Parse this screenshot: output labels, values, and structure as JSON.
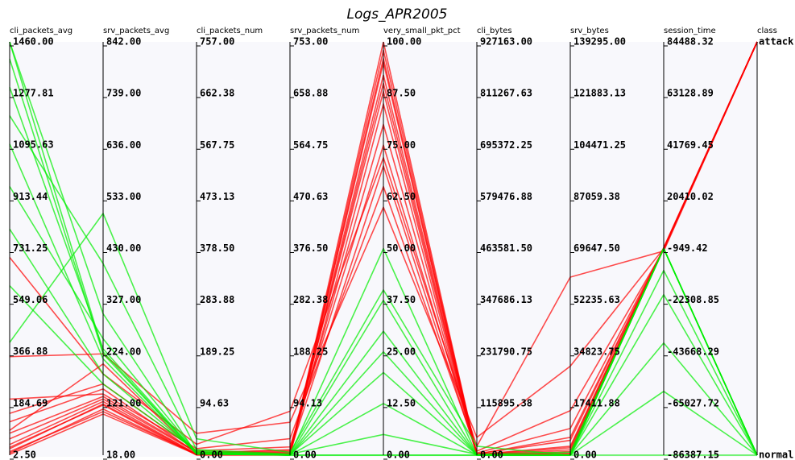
{
  "chart_data": {
    "type": "parallel",
    "title": "Logs_APR2005",
    "axes": [
      {
        "name": "cli_packets_avg",
        "lim": [
          2.5,
          1460
        ],
        "ticks": [
          {
            "value": 2.5,
            "label": "2.50"
          },
          {
            "value": 184.69,
            "label": "184.69"
          },
          {
            "value": 366.88,
            "label": "366.88"
          },
          {
            "value": 549.06,
            "label": "549.06"
          },
          {
            "value": 731.25,
            "label": "731.25"
          },
          {
            "value": 913.44,
            "label": "913.44"
          },
          {
            "value": 1095.63,
            "label": "1095.63"
          },
          {
            "value": 1277.81,
            "label": "1277.81"
          },
          {
            "value": 1460,
            "label": "1460.00"
          }
        ]
      },
      {
        "name": "srv_packets_avg",
        "lim": [
          18,
          842
        ],
        "ticks": [
          {
            "value": 18,
            "label": "18.00"
          },
          {
            "value": 121,
            "label": "121.00"
          },
          {
            "value": 224,
            "label": "224.00"
          },
          {
            "value": 327,
            "label": "327.00"
          },
          {
            "value": 430,
            "label": "430.00"
          },
          {
            "value": 533,
            "label": "533.00"
          },
          {
            "value": 636,
            "label": "636.00"
          },
          {
            "value": 739,
            "label": "739.00"
          },
          {
            "value": 842,
            "label": "842.00"
          }
        ]
      },
      {
        "name": "cli_packets_num",
        "lim": [
          0,
          757
        ],
        "ticks": [
          {
            "value": 0,
            "label": "0.00"
          },
          {
            "value": 94.63,
            "label": "94.63"
          },
          {
            "value": 189.25,
            "label": "189.25"
          },
          {
            "value": 283.88,
            "label": "283.88"
          },
          {
            "value": 378.5,
            "label": "378.50"
          },
          {
            "value": 473.13,
            "label": "473.13"
          },
          {
            "value": 567.75,
            "label": "567.75"
          },
          {
            "value": 662.38,
            "label": "662.38"
          },
          {
            "value": 757,
            "label": "757.00"
          }
        ]
      },
      {
        "name": "srv_packets_num",
        "lim": [
          0,
          753
        ],
        "ticks": [
          {
            "value": 0,
            "label": "0.00"
          },
          {
            "value": 94.13,
            "label": "94.13"
          },
          {
            "value": 188.25,
            "label": "188.25"
          },
          {
            "value": 282.38,
            "label": "282.38"
          },
          {
            "value": 376.5,
            "label": "376.50"
          },
          {
            "value": 470.63,
            "label": "470.63"
          },
          {
            "value": 564.75,
            "label": "564.75"
          },
          {
            "value": 658.88,
            "label": "658.88"
          },
          {
            "value": 753,
            "label": "753.00"
          }
        ]
      },
      {
        "name": "very_small_pkt_pct",
        "lim": [
          0,
          100
        ],
        "ticks": [
          {
            "value": 0,
            "label": "0.00"
          },
          {
            "value": 12.5,
            "label": "12.50"
          },
          {
            "value": 25,
            "label": "25.00"
          },
          {
            "value": 37.5,
            "label": "37.50"
          },
          {
            "value": 50,
            "label": "50.00"
          },
          {
            "value": 62.5,
            "label": "62.50"
          },
          {
            "value": 75,
            "label": "75.00"
          },
          {
            "value": 87.5,
            "label": "87.50"
          },
          {
            "value": 100,
            "label": "100.00"
          }
        ]
      },
      {
        "name": "cli_bytes",
        "lim": [
          0,
          927163
        ],
        "ticks": [
          {
            "value": 0,
            "label": "0.00"
          },
          {
            "value": 115895.38,
            "label": "115895.38"
          },
          {
            "value": 231790.75,
            "label": "231790.75"
          },
          {
            "value": 347686.13,
            "label": "347686.13"
          },
          {
            "value": 463581.5,
            "label": "463581.50"
          },
          {
            "value": 579476.88,
            "label": "579476.88"
          },
          {
            "value": 695372.25,
            "label": "695372.25"
          },
          {
            "value": 811267.63,
            "label": "811267.63"
          },
          {
            "value": 927163,
            "label": "927163.00"
          }
        ]
      },
      {
        "name": "srv_bytes",
        "lim": [
          0,
          139295
        ],
        "ticks": [
          {
            "value": 0,
            "label": "0.00"
          },
          {
            "value": 17411.88,
            "label": "17411.88"
          },
          {
            "value": 34823.75,
            "label": "34823.75"
          },
          {
            "value": 52235.63,
            "label": "52235.63"
          },
          {
            "value": 69647.5,
            "label": "69647.50"
          },
          {
            "value": 87059.38,
            "label": "87059.38"
          },
          {
            "value": 104471.25,
            "label": "104471.25"
          },
          {
            "value": 121883.13,
            "label": "121883.13"
          },
          {
            "value": 139295,
            "label": "139295.00"
          }
        ]
      },
      {
        "name": "session_time",
        "lim": [
          -86387.15,
          84488.32
        ],
        "ticks": [
          {
            "value": -86387.15,
            "label": "-86387.15"
          },
          {
            "value": -65027.72,
            "label": "-65027.72"
          },
          {
            "value": -43668.29,
            "label": "-43668.29"
          },
          {
            "value": -22308.85,
            "label": "-22308.85"
          },
          {
            "value": -949.42,
            "label": "-949.42"
          },
          {
            "value": 20410.02,
            "label": "20410.02"
          },
          {
            "value": 41769.45,
            "label": "41769.45"
          },
          {
            "value": 63128.89,
            "label": "63128.89"
          },
          {
            "value": 84488.32,
            "label": "84488.32"
          }
        ]
      }
    ],
    "class_axis": "class",
    "series": [
      {
        "name": "attack",
        "color": "#ff0000",
        "lines": [
          [
            25,
            120,
            2,
            3,
            95,
            800,
            1200,
            -949.42
          ],
          [
            60,
            130,
            5,
            8,
            88,
            1500,
            3000,
            -949.42
          ],
          [
            10,
            110,
            1,
            1,
            100,
            200,
            400,
            -949.42
          ],
          [
            150,
            160,
            8,
            15,
            75,
            5000,
            9000,
            -949.42
          ],
          [
            90,
            200,
            3,
            6,
            70,
            2500,
            6000,
            -949.42
          ],
          [
            40,
            125,
            2,
            2,
            92,
            900,
            1800,
            -949.42
          ],
          [
            200,
            140,
            12,
            30,
            65,
            9000,
            15000,
            -1500
          ],
          [
            5,
            100,
            1,
            1,
            98,
            100,
            200,
            -500
          ],
          [
            120,
            150,
            4,
            10,
            80,
            3000,
            5000,
            -949.42
          ],
          [
            30,
            118,
            0,
            0,
            85,
            0,
            0,
            -949.42
          ],
          [
            350,
            220,
            40,
            60,
            60,
            40000,
            30000,
            -949.42
          ],
          [
            700,
            180,
            20,
            80,
            72,
            20000,
            60000,
            -2000
          ],
          [
            80,
            135,
            6,
            4,
            90,
            1200,
            2500,
            -949.42
          ],
          [
            15,
            105,
            2,
            2,
            96,
            300,
            700,
            -949.42
          ]
        ]
      },
      {
        "name": "normal",
        "color": "#00ee00",
        "lines": [
          [
            1460,
            224,
            3,
            0,
            0,
            0,
            0,
            -949.42
          ],
          [
            1300,
            230,
            4,
            0,
            12.5,
            0,
            0,
            -20000
          ],
          [
            1100,
            210,
            2,
            0,
            25,
            0,
            0,
            -949.42
          ],
          [
            950,
            250,
            5,
            0,
            37.5,
            0,
            0,
            -40000
          ],
          [
            1460,
            300,
            2,
            0,
            50,
            0,
            0,
            -949.42
          ],
          [
            800,
            180,
            6,
            1,
            20,
            500,
            0,
            -60000
          ],
          [
            1200,
            400,
            10,
            2,
            5,
            2000,
            1000,
            -949.42
          ],
          [
            400,
            500,
            30,
            5,
            40,
            20000,
            0,
            -86387.15
          ],
          [
            1400,
            220,
            3,
            0,
            0,
            0,
            0,
            -949.42
          ],
          [
            600,
            160,
            8,
            0,
            30,
            0,
            0,
            -10000
          ]
        ]
      }
    ]
  }
}
